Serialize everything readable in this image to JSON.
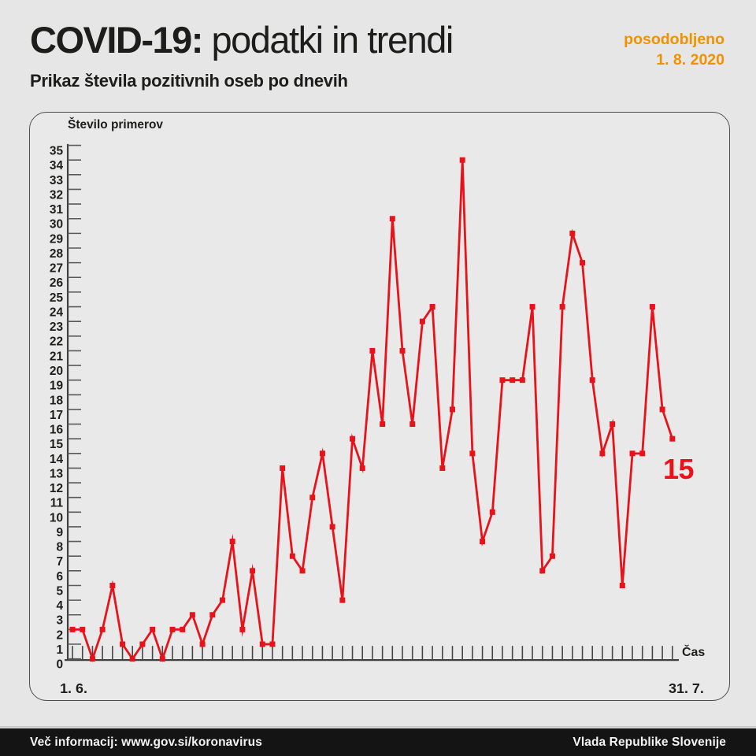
{
  "header": {
    "title_bold": "COVID-19:",
    "title_rest": " podatki in trendi",
    "updated_label": "posodobljeno",
    "updated_date": "1. 8. 2020",
    "subtitle": "Prikaz števila pozitivnih oseb po dnevih"
  },
  "chart_data": {
    "type": "line",
    "title": "",
    "ylabel": "Število primerov",
    "xlabel": "Čas",
    "x_start_label": "1. 6.",
    "x_end_label": "31. 7.",
    "x_range_note": "daily values from 1. 6. 2020 to 31. 7. 2020",
    "x_tick_count": 61,
    "ylim": [
      0,
      35
    ],
    "y_tick_step": 1,
    "y_tick_labels": [
      0,
      1,
      2,
      3,
      4,
      5,
      6,
      7,
      8,
      9,
      10,
      11,
      12,
      13,
      14,
      15,
      16,
      17,
      18,
      19,
      20,
      21,
      22,
      23,
      24,
      25,
      26,
      27,
      28,
      29,
      30,
      31,
      32,
      33,
      34,
      35
    ],
    "values": [
      2,
      2,
      0,
      2,
      5,
      1,
      0,
      1,
      2,
      0,
      2,
      2,
      3,
      1,
      3,
      4,
      8,
      2,
      6,
      1,
      1,
      13,
      7,
      6,
      11,
      14,
      9,
      4,
      15,
      13,
      21,
      16,
      30,
      21,
      16,
      23,
      24,
      13,
      17,
      34,
      14,
      8,
      10,
      19,
      19,
      19,
      24,
      6,
      7,
      24,
      29,
      27,
      19,
      14,
      16,
      5,
      14,
      14,
      24,
      17,
      15
    ],
    "last_value_label": "15",
    "legend": [],
    "grid": "off"
  },
  "footer": {
    "left": "Več informacij: www.gov.si/koronavirus",
    "right": "Vlada Republike Slovenije"
  },
  "colors": {
    "accent_red": "#e8131a",
    "accent_orange": "#f29100",
    "axis_dark": "#3f3f3f",
    "tick_gray": "#5a5a5a",
    "footer_bg": "#141414",
    "panel_border": "#4f4f4f"
  }
}
